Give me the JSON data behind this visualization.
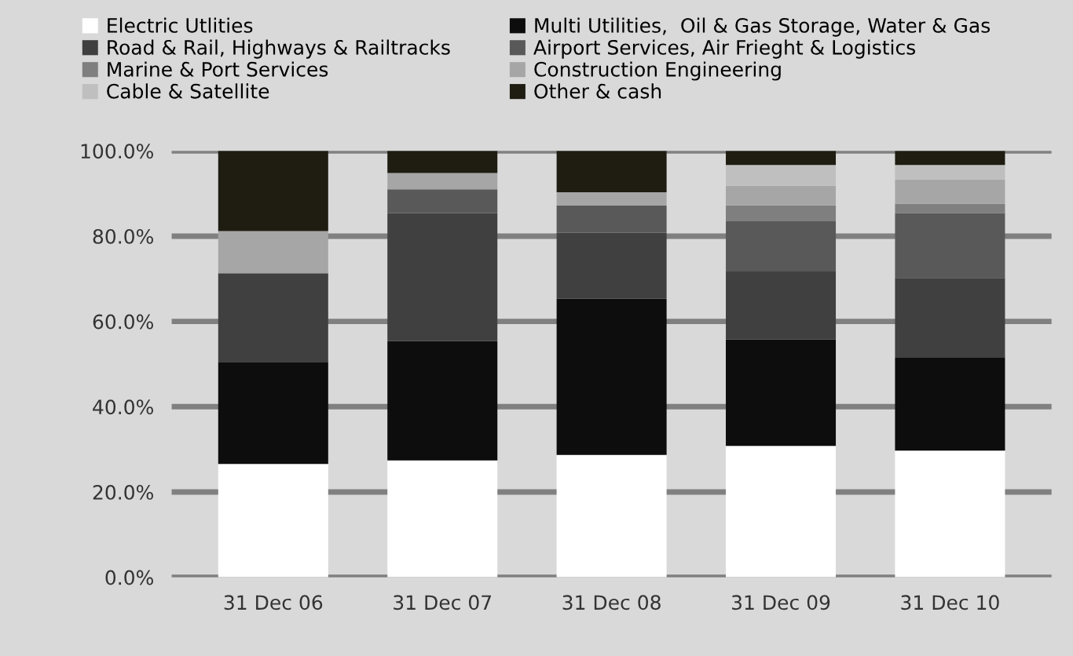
{
  "chart_data": {
    "type": "bar",
    "stacked": true,
    "categories": [
      "31 Dec 06",
      "31 Dec 07",
      "31 Dec 08",
      "31 Dec 09",
      "31 Dec 10"
    ],
    "series": [
      {
        "name": "Electric Utlities",
        "color": "#ffffff",
        "values": [
          26.6,
          27.4,
          28.7,
          30.8,
          29.7
        ]
      },
      {
        "name": "Multi Utilities,  Oil & Gas Storage, Water & Gas",
        "color": "#0d0d0d",
        "values": [
          23.9,
          28.0,
          36.6,
          25.0,
          21.9
        ]
      },
      {
        "name": "Road & Rail, Highways & Railtracks",
        "color": "#404040",
        "values": [
          20.8,
          30.0,
          15.5,
          15.9,
          18.6
        ]
      },
      {
        "name": "Airport Services, Air Frieght & Logistics",
        "color": "#595959",
        "values": [
          0,
          5.6,
          6.4,
          11.8,
          15.2
        ]
      },
      {
        "name": "Marine & Port Services",
        "color": "#7f7f7f",
        "values": [
          0,
          0,
          0,
          3.7,
          2.2
        ]
      },
      {
        "name": "Construction Engineering",
        "color": "#a6a6a6",
        "values": [
          9.9,
          3.8,
          3.1,
          4.6,
          5.7
        ]
      },
      {
        "name": "Cable & Satellite",
        "color": "#bfbfbf",
        "values": [
          0,
          0,
          0,
          4.9,
          3.4
        ]
      },
      {
        "name": "Other & cash",
        "color": "#1f1c12",
        "values": [
          18.8,
          5.2,
          9.7,
          3.3,
          3.3
        ]
      }
    ],
    "ylim": [
      0,
      100
    ],
    "yticks": [
      {
        "value": 0,
        "label": "0.0%"
      },
      {
        "value": 20,
        "label": "20.0%"
      },
      {
        "value": 40,
        "label": "40.0%"
      },
      {
        "value": 60,
        "label": "60.0%"
      },
      {
        "value": 80,
        "label": "80.0%"
      },
      {
        "value": 100,
        "label": "100.0%"
      }
    ],
    "grid": "y",
    "legend": "top"
  }
}
